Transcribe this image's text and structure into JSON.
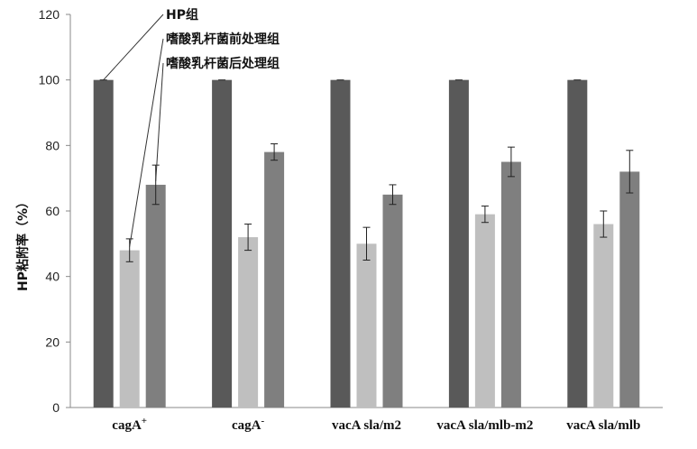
{
  "chart_data": {
    "type": "bar",
    "categories": [
      "cagA+",
      "cagA-",
      "vacA sla/m2",
      "vacA sla/mlb-m2",
      "vacA sla/mlb"
    ],
    "category_labels": [
      {
        "base": "cagA",
        "sup": "+"
      },
      {
        "base": "cagA",
        "sup": "-"
      },
      {
        "base": "vacA sla/m2",
        "sup": ""
      },
      {
        "base": "vacA sla/mlb-m2",
        "sup": ""
      },
      {
        "base": "vacA sla/mlb",
        "sup": ""
      }
    ],
    "series": [
      {
        "name": "HP组",
        "color": "#595959",
        "values": [
          100,
          100,
          100,
          100,
          100
        ],
        "errors": [
          0,
          0,
          0,
          0,
          0
        ]
      },
      {
        "name": "嗜酸乳杆菌前处理组",
        "color": "#bfbfbf",
        "values": [
          48,
          52,
          50,
          59,
          56
        ],
        "errors": [
          3.5,
          4.0,
          5.0,
          2.5,
          4.0
        ]
      },
      {
        "name": "嗜酸乳杆菌后处理组",
        "color": "#7f7f7f",
        "values": [
          68,
          78,
          65,
          75,
          72
        ],
        "errors": [
          6.0,
          2.5,
          3.0,
          4.5,
          6.5
        ]
      }
    ],
    "ylabel": "HP粘附率（%）",
    "xlabel": "",
    "ylim": [
      0,
      120
    ],
    "yticks": [
      0,
      20,
      40,
      60,
      80,
      100,
      120
    ],
    "legend_placement": "top-left, labels with leader lines to bars",
    "grid": false
  }
}
